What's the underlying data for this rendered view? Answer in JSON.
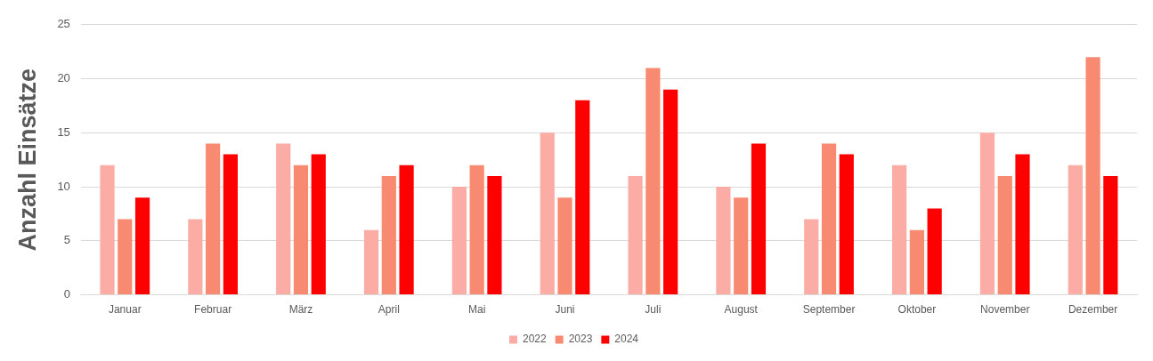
{
  "chart_data": {
    "type": "bar",
    "ylabel": "Anzahl Einsätze",
    "categories": [
      "Januar",
      "Februar",
      "März",
      "April",
      "Mai",
      "Juni",
      "Juli",
      "August",
      "September",
      "Oktober",
      "November",
      "Dezember"
    ],
    "series": [
      {
        "name": "2022",
        "color": "#fbaca5",
        "values": [
          12,
          7,
          14,
          6,
          10,
          15,
          11,
          10,
          7,
          12,
          15,
          12
        ]
      },
      {
        "name": "2023",
        "color": "#f98a72",
        "values": [
          7,
          14,
          12,
          11,
          12,
          9,
          21,
          9,
          14,
          6,
          11,
          22
        ]
      },
      {
        "name": "2024",
        "color": "#ff0000",
        "values": [
          9,
          13,
          13,
          12,
          11,
          18,
          19,
          14,
          13,
          8,
          13,
          11
        ]
      }
    ],
    "ylim": [
      0,
      25
    ],
    "yticks": [
      0,
      5,
      10,
      15,
      20,
      25
    ],
    "grid": "y",
    "legend": "bottom"
  }
}
